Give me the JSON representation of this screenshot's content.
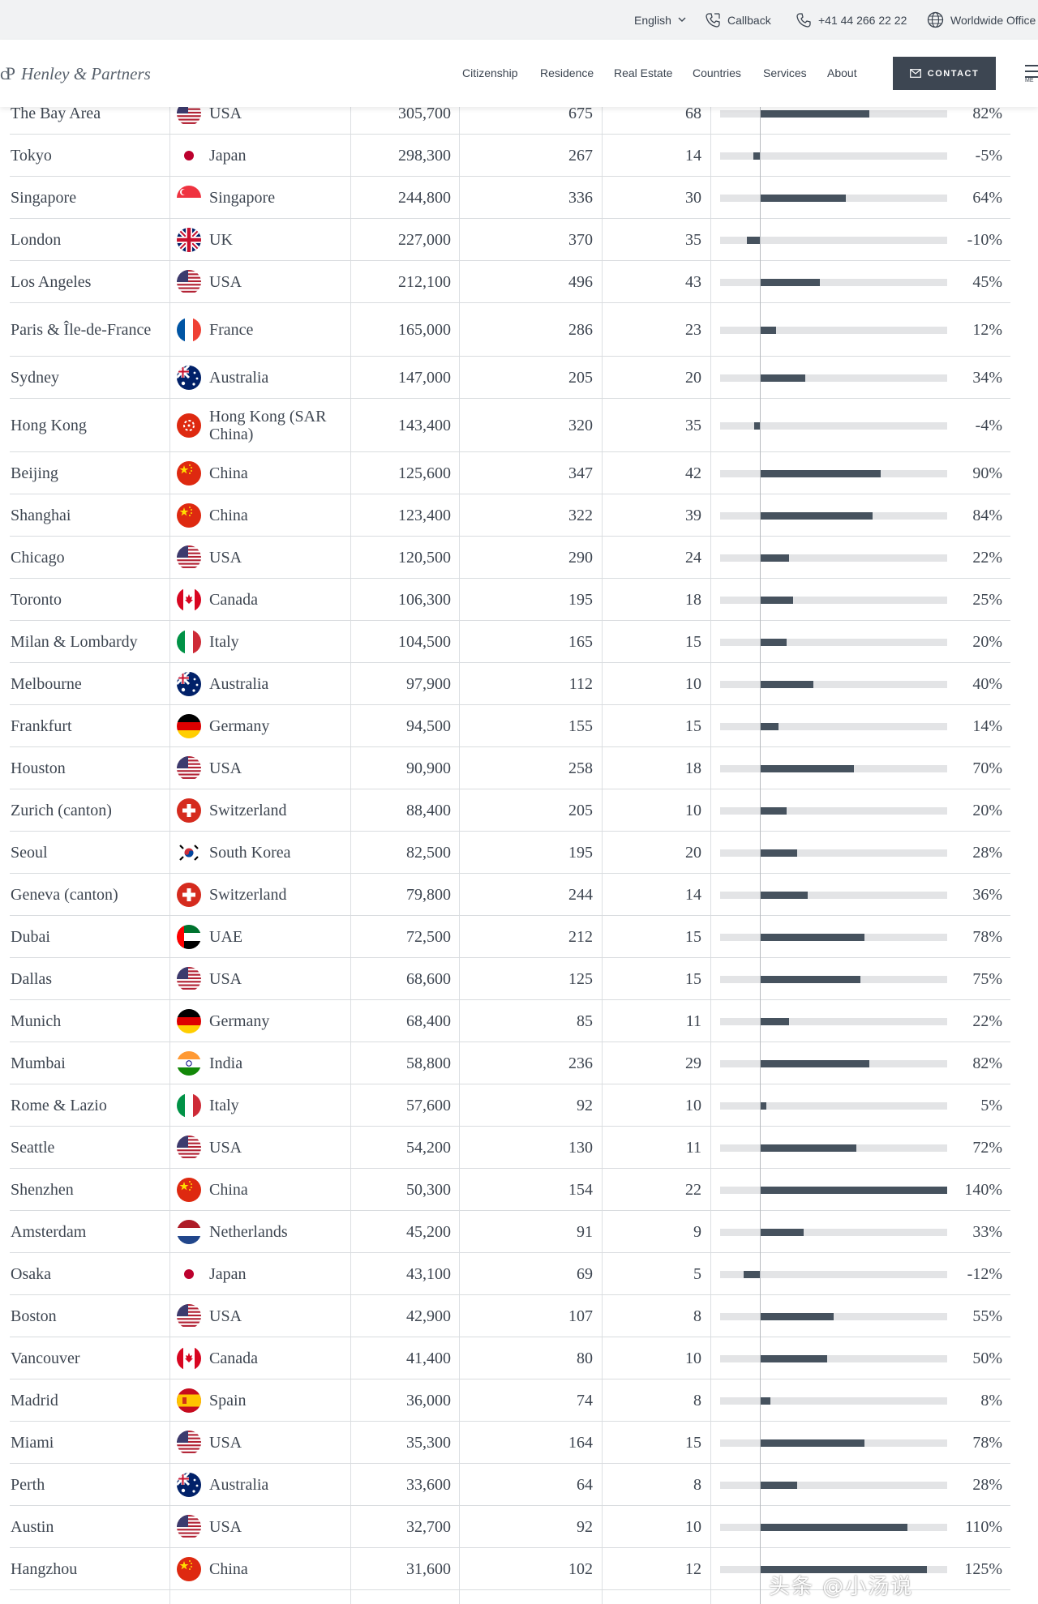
{
  "topbar": {
    "language": "English",
    "callback": "Callback",
    "phone": "+41 44 266 22 22",
    "offices": "Worldwide Office"
  },
  "nav": {
    "logo_mark": "cP",
    "logo_text": "Henley & Partners",
    "items": [
      "Citizenship",
      "Residence",
      "Real Estate",
      "Countries",
      "Services",
      "About"
    ],
    "contact_label": "CONTACT",
    "menu_label": "ME"
  },
  "colors": {
    "bar": "#46525e",
    "track": "#e3e4e6",
    "contact_bg": "#3d4652"
  },
  "rows": [
    {
      "city": "The Bay Area",
      "country": "USA",
      "flag": "us",
      "millionaires": "305,700",
      "centi": "675",
      "billionaires": "68",
      "growth": 82,
      "growth_label": "82%"
    },
    {
      "city": "Tokyo",
      "country": "Japan",
      "flag": "jp",
      "millionaires": "298,300",
      "centi": "267",
      "billionaires": "14",
      "growth": -5,
      "growth_label": "-5%"
    },
    {
      "city": "Singapore",
      "country": "Singapore",
      "flag": "sg",
      "millionaires": "244,800",
      "centi": "336",
      "billionaires": "30",
      "growth": 64,
      "growth_label": "64%"
    },
    {
      "city": "London",
      "country": "UK",
      "flag": "uk",
      "millionaires": "227,000",
      "centi": "370",
      "billionaires": "35",
      "growth": -10,
      "growth_label": "-10%"
    },
    {
      "city": "Los Angeles",
      "country": "USA",
      "flag": "us",
      "millionaires": "212,100",
      "centi": "496",
      "billionaires": "43",
      "growth": 45,
      "growth_label": "45%"
    },
    {
      "city": "Paris & Île-de-France",
      "country": "France",
      "flag": "fr",
      "millionaires": "165,000",
      "centi": "286",
      "billionaires": "23",
      "growth": 12,
      "growth_label": "12%"
    },
    {
      "city": "Sydney",
      "country": "Australia",
      "flag": "au",
      "millionaires": "147,000",
      "centi": "205",
      "billionaires": "20",
      "growth": 34,
      "growth_label": "34%"
    },
    {
      "city": "Hong Kong",
      "country": "Hong Kong (SAR China)",
      "flag": "hk",
      "millionaires": "143,400",
      "centi": "320",
      "billionaires": "35",
      "growth": -4,
      "growth_label": "-4%"
    },
    {
      "city": "Beijing",
      "country": "China",
      "flag": "cn",
      "millionaires": "125,600",
      "centi": "347",
      "billionaires": "42",
      "growth": 90,
      "growth_label": "90%"
    },
    {
      "city": "Shanghai",
      "country": "China",
      "flag": "cn",
      "millionaires": "123,400",
      "centi": "322",
      "billionaires": "39",
      "growth": 84,
      "growth_label": "84%"
    },
    {
      "city": "Chicago",
      "country": "USA",
      "flag": "us",
      "millionaires": "120,500",
      "centi": "290",
      "billionaires": "24",
      "growth": 22,
      "growth_label": "22%"
    },
    {
      "city": "Toronto",
      "country": "Canada",
      "flag": "ca",
      "millionaires": "106,300",
      "centi": "195",
      "billionaires": "18",
      "growth": 25,
      "growth_label": "25%"
    },
    {
      "city": "Milan & Lombardy",
      "country": "Italy",
      "flag": "it",
      "millionaires": "104,500",
      "centi": "165",
      "billionaires": "15",
      "growth": 20,
      "growth_label": "20%"
    },
    {
      "city": "Melbourne",
      "country": "Australia",
      "flag": "au",
      "millionaires": "97,900",
      "centi": "112",
      "billionaires": "10",
      "growth": 40,
      "growth_label": "40%"
    },
    {
      "city": "Frankfurt",
      "country": "Germany",
      "flag": "de",
      "millionaires": "94,500",
      "centi": "155",
      "billionaires": "15",
      "growth": 14,
      "growth_label": "14%"
    },
    {
      "city": "Houston",
      "country": "USA",
      "flag": "us",
      "millionaires": "90,900",
      "centi": "258",
      "billionaires": "18",
      "growth": 70,
      "growth_label": "70%"
    },
    {
      "city": "Zurich (canton)",
      "country": "Switzerland",
      "flag": "ch",
      "millionaires": "88,400",
      "centi": "205",
      "billionaires": "10",
      "growth": 20,
      "growth_label": "20%"
    },
    {
      "city": "Seoul",
      "country": "South Korea",
      "flag": "kr",
      "millionaires": "82,500",
      "centi": "195",
      "billionaires": "20",
      "growth": 28,
      "growth_label": "28%"
    },
    {
      "city": "Geneva (canton)",
      "country": "Switzerland",
      "flag": "ch",
      "millionaires": "79,800",
      "centi": "244",
      "billionaires": "14",
      "growth": 36,
      "growth_label": "36%"
    },
    {
      "city": "Dubai",
      "country": "UAE",
      "flag": "ae",
      "millionaires": "72,500",
      "centi": "212",
      "billionaires": "15",
      "growth": 78,
      "growth_label": "78%"
    },
    {
      "city": "Dallas",
      "country": "USA",
      "flag": "us",
      "millionaires": "68,600",
      "centi": "125",
      "billionaires": "15",
      "growth": 75,
      "growth_label": "75%"
    },
    {
      "city": "Munich",
      "country": "Germany",
      "flag": "de",
      "millionaires": "68,400",
      "centi": "85",
      "billionaires": "11",
      "growth": 22,
      "growth_label": "22%"
    },
    {
      "city": "Mumbai",
      "country": "India",
      "flag": "in",
      "millionaires": "58,800",
      "centi": "236",
      "billionaires": "29",
      "growth": 82,
      "growth_label": "82%"
    },
    {
      "city": "Rome & Lazio",
      "country": "Italy",
      "flag": "it",
      "millionaires": "57,600",
      "centi": "92",
      "billionaires": "10",
      "growth": 5,
      "growth_label": "5%"
    },
    {
      "city": "Seattle",
      "country": "USA",
      "flag": "us",
      "millionaires": "54,200",
      "centi": "130",
      "billionaires": "11",
      "growth": 72,
      "growth_label": "72%"
    },
    {
      "city": "Shenzhen",
      "country": "China",
      "flag": "cn",
      "millionaires": "50,300",
      "centi": "154",
      "billionaires": "22",
      "growth": 140,
      "growth_label": "140%"
    },
    {
      "city": "Amsterdam",
      "country": "Netherlands",
      "flag": "nl",
      "millionaires": "45,200",
      "centi": "91",
      "billionaires": "9",
      "growth": 33,
      "growth_label": "33%"
    },
    {
      "city": "Osaka",
      "country": "Japan",
      "flag": "jp",
      "millionaires": "43,100",
      "centi": "69",
      "billionaires": "5",
      "growth": -12,
      "growth_label": "-12%"
    },
    {
      "city": "Boston",
      "country": "USA",
      "flag": "us",
      "millionaires": "42,900",
      "centi": "107",
      "billionaires": "8",
      "growth": 55,
      "growth_label": "55%"
    },
    {
      "city": "Vancouver",
      "country": "Canada",
      "flag": "ca",
      "millionaires": "41,400",
      "centi": "80",
      "billionaires": "10",
      "growth": 50,
      "growth_label": "50%"
    },
    {
      "city": "Madrid",
      "country": "Spain",
      "flag": "es",
      "millionaires": "36,000",
      "centi": "74",
      "billionaires": "8",
      "growth": 8,
      "growth_label": "8%"
    },
    {
      "city": "Miami",
      "country": "USA",
      "flag": "us",
      "millionaires": "35,300",
      "centi": "164",
      "billionaires": "15",
      "growth": 78,
      "growth_label": "78%"
    },
    {
      "city": "Perth",
      "country": "Australia",
      "flag": "au",
      "millionaires": "33,600",
      "centi": "64",
      "billionaires": "8",
      "growth": 28,
      "growth_label": "28%"
    },
    {
      "city": "Austin",
      "country": "USA",
      "flag": "us",
      "millionaires": "32,700",
      "centi": "92",
      "billionaires": "10",
      "growth": 110,
      "growth_label": "110%"
    },
    {
      "city": "Hangzhou",
      "country": "China",
      "flag": "cn",
      "millionaires": "31,600",
      "centi": "102",
      "billionaires": "12",
      "growth": 125,
      "growth_label": "125%"
    }
  ],
  "watermark": "头条 @小汤说"
}
